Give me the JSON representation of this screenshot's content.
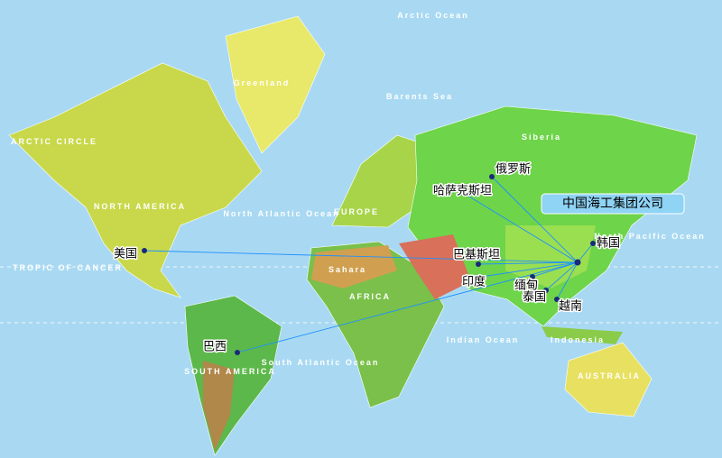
{
  "map": {
    "hub": {
      "label": "中国海工集团公司"
    },
    "destinations": [
      {
        "label": "美国"
      },
      {
        "label": "巴西"
      },
      {
        "label": "俄罗斯"
      },
      {
        "label": "哈萨克斯坦"
      },
      {
        "label": "巴基斯坦"
      },
      {
        "label": "印度"
      },
      {
        "label": "缅甸"
      },
      {
        "label": "泰国"
      },
      {
        "label": "越南"
      },
      {
        "label": "韩国"
      }
    ],
    "geo_labels": [
      "Arctic Ocean",
      "Greenland",
      "NORTH AMERICA",
      "ARCTIC CIRCLE",
      "North Atlantic Ocean",
      "TROPIC OF CANCER",
      "EUROPE",
      "Sahara",
      "AFRICA",
      "Barents Sea",
      "Siberia",
      "SOUTH AMERICA",
      "South Atlantic Ocean",
      "Indian Ocean",
      "Indonesia",
      "AUSTRALIA",
      "North Pacific Ocean"
    ]
  }
}
